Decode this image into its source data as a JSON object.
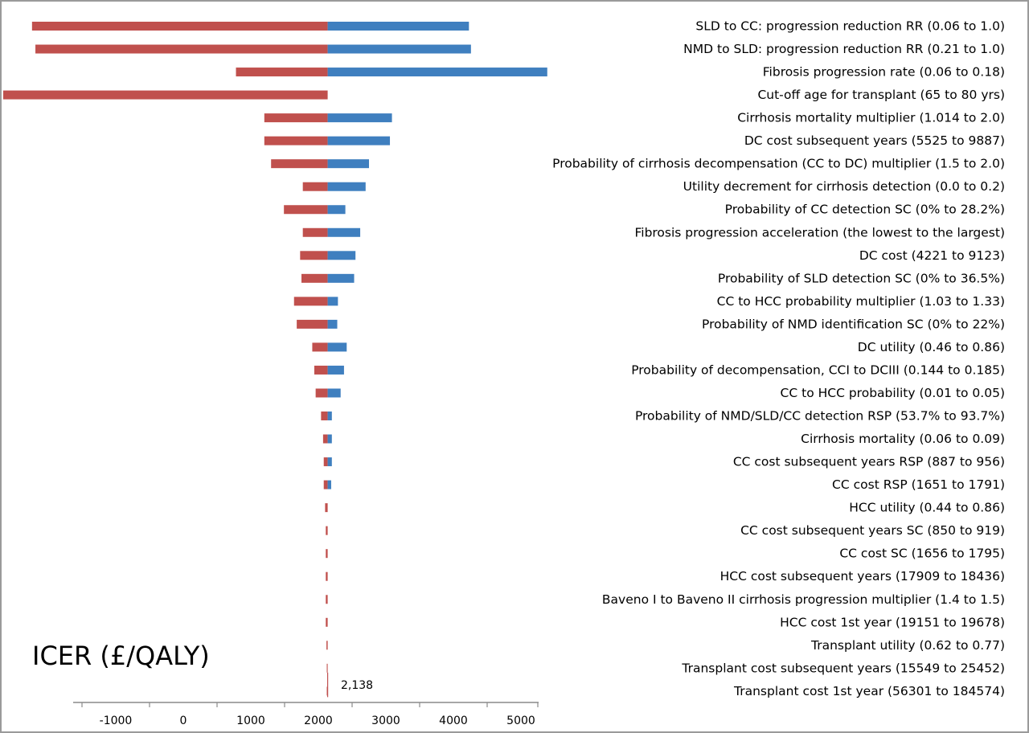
{
  "chart_data": {
    "type": "bar",
    "orientation": "horizontal",
    "subtype": "tornado",
    "base_value": 2138,
    "base_label": "2,138",
    "xlabel": "ICER (£/QALY)",
    "xlim": [
      -1650,
      5350
    ],
    "xticks": [
      -1000,
      0,
      1000,
      2000,
      3000,
      4000,
      5000
    ],
    "xtick_labels": [
      "-1000",
      "0",
      "1000",
      "2000",
      "3000",
      "4000",
      "5000"
    ],
    "colors": {
      "low": "#c0504d",
      "high": "#3f7fbf"
    },
    "categories": [
      "SLD to CC: progression reduction RR (0.06 to 1.0)",
      "NMD to SLD: progression reduction RR (0.21 to 1.0)",
      "Fibrosis progression rate (0.06 to 0.18)",
      "Cut-off age for transplant (65 to 80 yrs)",
      "Cirrhosis mortality multiplier (1.014 to 2.0)",
      "DC cost subsequent years (5525 to 9887)",
      "Probability of cirrhosis decompensation (CC to DC) multiplier (1.5 to 2.0)",
      "Utility decrement for cirrhosis detection (0.0 to 0.2)",
      "Probability of CC detection SC (0% to 28.2%)",
      "Fibrosis progression acceleration (the lowest to the largest)",
      "DC cost (4221 to 9123)",
      "Probability of SLD detection SC (0% to 36.5%)",
      "CC to HCC probability multiplier (1.03 to 1.33)",
      "Probability of NMD identification SC (0% to 22%)",
      "DC utility (0.46 to 0.86)",
      "Probability of decompensation, CCI to DCIII (0.144 to 0.185)",
      "CC to HCC probability (0.01 to 0.05)",
      "Probability of NMD/SLD/CC detection RSP (53.7% to 93.7%)",
      "Cirrhosis mortality (0.06 to 0.09)",
      "CC cost subsequent years RSP (887 to 956)",
      "CC cost RSP (1651 to 1791)",
      "HCC utility (0.44 to 0.86)",
      "CC cost subsequent years SC (850 to 919)",
      "CC cost SC (1656 to 1795)",
      "HCC cost subsequent years (17909 to 18436)",
      "Baveno I to Baveno II cirrhosis progression multiplier (1.4 to 1.5)",
      "HCC cost 1st year (19151 to 19678)",
      "Transplant utility (0.62 to 0.77)",
      "Transplant cost subsequent years (15549 to 25452)",
      "Transplant cost 1st year (56301 to 184574)"
    ],
    "low_values": [
      -2240,
      -2190,
      780,
      -2690,
      1200,
      1200,
      1300,
      1770,
      1490,
      1770,
      1730,
      1750,
      1640,
      1680,
      1910,
      1940,
      1960,
      2040,
      2070,
      2080,
      2080,
      2100,
      2110,
      2110,
      2110,
      2110,
      2110,
      2120,
      2125,
      2125
    ],
    "high_values": [
      4230,
      4260,
      5390,
      2138,
      3090,
      3060,
      2750,
      2700,
      2400,
      2620,
      2550,
      2530,
      2290,
      2280,
      2420,
      2380,
      2330,
      2200,
      2200,
      2200,
      2190,
      2138,
      2138,
      2138,
      2138,
      2138,
      2138,
      2138,
      2138,
      2138
    ]
  }
}
